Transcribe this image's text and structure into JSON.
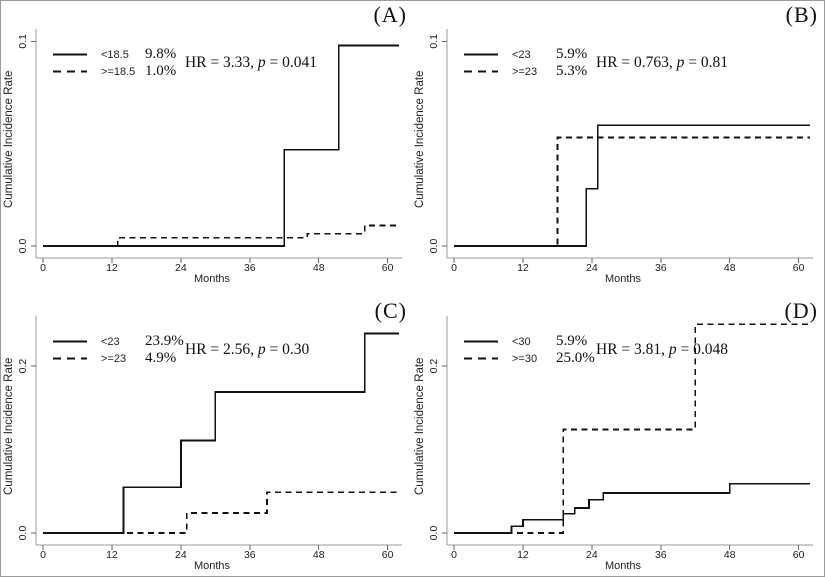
{
  "colors": {
    "background": "#ffffff",
    "curve": "#111111",
    "axis_line": "#999999",
    "tick_mark": "#666666",
    "text": "#1a1a1a",
    "figure_border": "#9a9a9a"
  },
  "chart_data": [
    {
      "type": "line",
      "step": true,
      "panel_label": "(A)",
      "xlabel": "Months",
      "ylabel": "Cumulative Incidence Rate",
      "xlim": [
        0,
        62.5
      ],
      "ylim": [
        0,
        0.106
      ],
      "xticks": [
        0,
        12,
        24,
        36,
        48,
        60
      ],
      "yticks": [
        {
          "value": 0.0,
          "label": "0.0"
        },
        {
          "value": 0.1,
          "label": "0.1"
        }
      ],
      "grid": false,
      "legend_position": "top-left",
      "annotation": {
        "hr_text": "HR = 3.33,",
        "p_symbol": "p",
        "p_text": "= 0.041"
      },
      "series": [
        {
          "name": "<18.5",
          "pct": "9.8%",
          "style": "solid",
          "points": [
            [
              0,
              0
            ],
            [
              42,
              0
            ],
            [
              42,
              0.047
            ],
            [
              51.5,
              0.047
            ],
            [
              51.5,
              0.098
            ],
            [
              62,
              0.098
            ]
          ]
        },
        {
          "name": ">=18.5",
          "pct": "1.0%",
          "style": "dashed",
          "points": [
            [
              0,
              0
            ],
            [
              13,
              0
            ],
            [
              13,
              0.004
            ],
            [
              46,
              0.004
            ],
            [
              46,
              0.006
            ],
            [
              56,
              0.006
            ],
            [
              56,
              0.01
            ],
            [
              62,
              0.01
            ]
          ]
        }
      ]
    },
    {
      "type": "line",
      "step": true,
      "panel_label": "(B)",
      "xlabel": "Months",
      "ylabel": "Cumulative Incidence Rate",
      "xlim": [
        0,
        62.5
      ],
      "ylim": [
        0,
        0.106
      ],
      "xticks": [
        0,
        12,
        24,
        36,
        48,
        60
      ],
      "yticks": [
        {
          "value": 0.0,
          "label": "0.0"
        },
        {
          "value": 0.1,
          "label": "0.1"
        }
      ],
      "grid": false,
      "legend_position": "top-left",
      "annotation": {
        "hr_text": "HR = 0.763,",
        "p_symbol": "p",
        "p_text": "= 0.81"
      },
      "series": [
        {
          "name": "<23",
          "pct": "5.9%",
          "style": "solid",
          "points": [
            [
              0,
              0
            ],
            [
              23,
              0
            ],
            [
              23,
              0.028
            ],
            [
              25,
              0.028
            ],
            [
              25,
              0.059
            ],
            [
              62,
              0.059
            ]
          ]
        },
        {
          "name": ">=23",
          "pct": "5.3%",
          "style": "dashed",
          "points": [
            [
              0,
              0
            ],
            [
              18,
              0
            ],
            [
              18,
              0.053
            ],
            [
              62,
              0.053
            ]
          ]
        }
      ]
    },
    {
      "type": "line",
      "step": true,
      "panel_label": "(C)",
      "xlabel": "Months",
      "ylabel": "Cumulative Incidence Rate",
      "xlim": [
        0,
        62.5
      ],
      "ylim": [
        0,
        0.26
      ],
      "xticks": [
        0,
        12,
        24,
        36,
        48,
        60
      ],
      "yticks": [
        {
          "value": 0.0,
          "label": "0.0"
        },
        {
          "value": 0.2,
          "label": "0.2"
        }
      ],
      "grid": false,
      "legend_position": "top-left",
      "annotation": {
        "hr_text": "HR = 2.56,",
        "p_symbol": "p",
        "p_text": "= 0.30"
      },
      "series": [
        {
          "name": "<23",
          "pct": "23.9%",
          "style": "solid",
          "points": [
            [
              0,
              0
            ],
            [
              14,
              0
            ],
            [
              14,
              0.055
            ],
            [
              24,
              0.055
            ],
            [
              24,
              0.111
            ],
            [
              30,
              0.111
            ],
            [
              30,
              0.169
            ],
            [
              56,
              0.169
            ],
            [
              56,
              0.239
            ],
            [
              62,
              0.239
            ]
          ]
        },
        {
          "name": ">=23",
          "pct": "4.9%",
          "style": "dashed",
          "points": [
            [
              0,
              0
            ],
            [
              25,
              0
            ],
            [
              25,
              0.024
            ],
            [
              39,
              0.024
            ],
            [
              39,
              0.049
            ],
            [
              62,
              0.049
            ]
          ]
        }
      ]
    },
    {
      "type": "line",
      "step": true,
      "panel_label": "(D)",
      "xlabel": "Months",
      "ylabel": "Cumulative Incidence Rate",
      "xlim": [
        0,
        62.5
      ],
      "ylim": [
        0,
        0.26
      ],
      "xticks": [
        0,
        12,
        24,
        36,
        48,
        60
      ],
      "yticks": [
        {
          "value": 0.0,
          "label": "0.0"
        },
        {
          "value": 0.2,
          "label": "0.2"
        }
      ],
      "grid": false,
      "legend_position": "top-left",
      "annotation": {
        "hr_text": "HR = 3.81,",
        "p_symbol": "p",
        "p_text": "= 0.048"
      },
      "series": [
        {
          "name": "<30",
          "pct": "5.9%",
          "style": "solid",
          "points": [
            [
              0,
              0
            ],
            [
              10,
              0
            ],
            [
              10,
              0.008
            ],
            [
              12,
              0.008
            ],
            [
              12,
              0.016
            ],
            [
              19,
              0.016
            ],
            [
              19,
              0.023
            ],
            [
              21,
              0.023
            ],
            [
              21,
              0.03
            ],
            [
              23.5,
              0.03
            ],
            [
              23.5,
              0.04
            ],
            [
              26,
              0.04
            ],
            [
              26,
              0.048
            ],
            [
              48,
              0.048
            ],
            [
              48,
              0.059
            ],
            [
              62,
              0.059
            ]
          ]
        },
        {
          "name": ">=30",
          "pct": "25.0%",
          "style": "dashed",
          "points": [
            [
              0,
              0
            ],
            [
              19,
              0
            ],
            [
              19,
              0.124
            ],
            [
              42,
              0.124
            ],
            [
              42,
              0.25
            ],
            [
              62,
              0.25
            ]
          ]
        }
      ]
    }
  ]
}
